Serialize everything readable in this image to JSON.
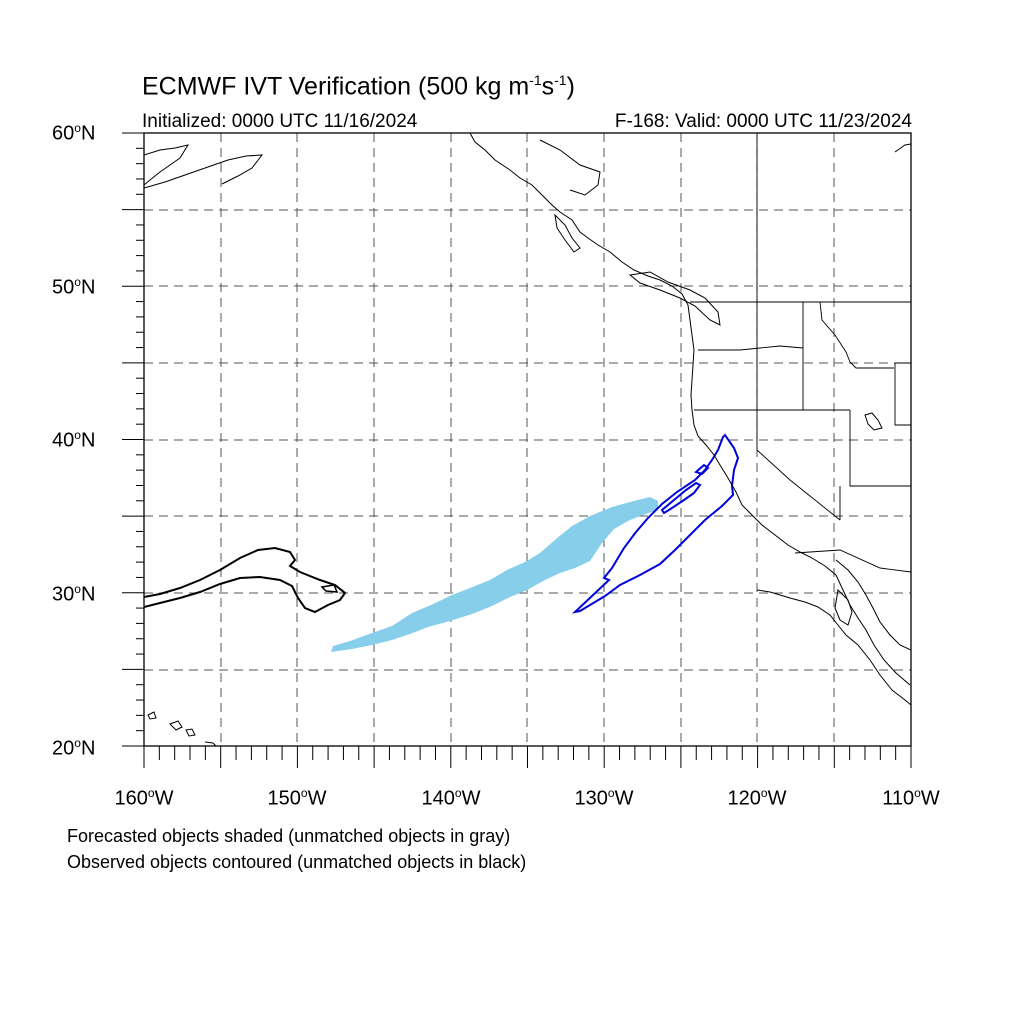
{
  "title": {
    "main": "ECMWF IVT Verification (500 kg m",
    "exp1": "-1",
    "mid": "s",
    "exp2": "-1",
    "end": ")"
  },
  "initialized": "Initialized: 0000 UTC 11/16/2024",
  "valid": "F-168: Valid: 0000 UTC 11/23/2024",
  "lat_labels": [
    "60",
    "50",
    "40",
    "30",
    "20"
  ],
  "lon_labels": [
    "160",
    "150",
    "140",
    "130",
    "120",
    "110"
  ],
  "degree_symbol": "o",
  "lat_suffix": "N",
  "lon_suffix": "W",
  "notes": [
    "Forecasted objects shaded (unmatched objects in gray)",
    "Observed objects contoured (unmatched objects in black)"
  ],
  "colors": {
    "forecast_fill": "#87ceeb",
    "observed_matched": "#0000dd",
    "observed_unmatched": "#000000",
    "grid": "#555555",
    "coast": "#000000"
  },
  "map": {
    "lon_range": [
      -160,
      -110
    ],
    "lat_range": [
      20,
      60
    ],
    "gridline_style": "dashed"
  }
}
